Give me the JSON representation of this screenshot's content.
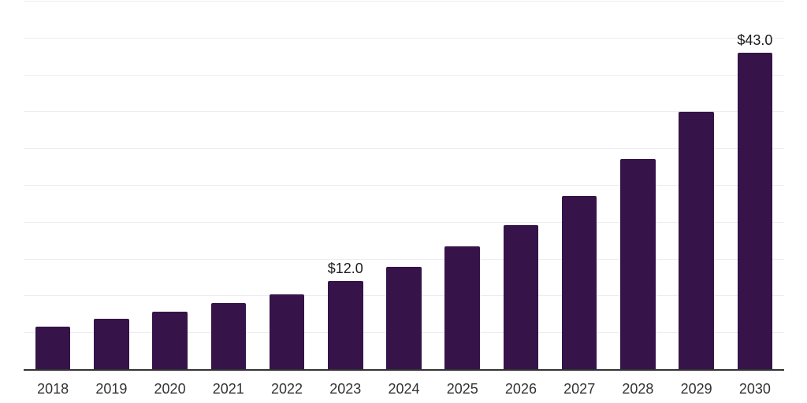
{
  "chart_data": {
    "type": "bar",
    "title": "",
    "xlabel": "",
    "ylabel": "",
    "categories": [
      "2018",
      "2019",
      "2020",
      "2021",
      "2022",
      "2023",
      "2024",
      "2025",
      "2026",
      "2027",
      "2028",
      "2029",
      "2030"
    ],
    "values": [
      5.8,
      6.8,
      7.8,
      9.0,
      10.2,
      12.0,
      13.9,
      16.7,
      19.6,
      23.5,
      28.5,
      34.9,
      43.0
    ],
    "value_labels": {
      "2023": "$12.0",
      "2030": "$43.0"
    },
    "ylim": [
      0,
      50
    ],
    "grid_step": 5,
    "grid": true,
    "legend": false,
    "y_tick_labels_shown": false,
    "colors": {
      "bar": "#361348",
      "grid": "#ededf1",
      "axis": "#333333",
      "tick_label": "#333333",
      "value_label": "#1b1b1b",
      "background": "#ffffff"
    }
  }
}
